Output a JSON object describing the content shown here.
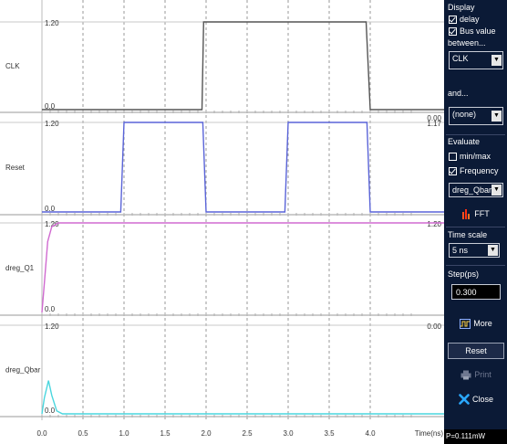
{
  "waveform": {
    "tick_color": "#b0b0b0",
    "lanes": [
      {
        "name": "CLK",
        "hi_label": "1.20",
        "lo_label": "0.0",
        "right_value": "0.00",
        "color": "#555555",
        "points": [
          [
            0,
            0
          ],
          [
            1.95,
            0
          ],
          [
            1.97,
            1.2
          ],
          [
            3.95,
            1.2
          ],
          [
            4.0,
            0
          ],
          [
            5.0,
            0
          ]
        ]
      },
      {
        "name": "Reset",
        "hi_label": "1.20",
        "lo_label": "0.0",
        "right_value": "1.17",
        "color": "#5a64d8",
        "points": [
          [
            0,
            0
          ],
          [
            0.96,
            0
          ],
          [
            1.0,
            1.2
          ],
          [
            1.96,
            1.2
          ],
          [
            2.0,
            0
          ],
          [
            2.96,
            0
          ],
          [
            3.0,
            1.2
          ],
          [
            3.96,
            1.2
          ],
          [
            4.0,
            0
          ],
          [
            5.0,
            0
          ]
        ]
      },
      {
        "name": "dreg_Q1",
        "hi_label": "1.20",
        "lo_label": "0.0",
        "right_value": "1.20",
        "color": "#d06ad0",
        "points": [
          [
            0,
            0
          ],
          [
            0.03,
            0.4
          ],
          [
            0.07,
            0.95
          ],
          [
            0.12,
            1.15
          ],
          [
            0.2,
            1.2
          ],
          [
            5.0,
            1.2
          ]
        ]
      },
      {
        "name": "dreg_Qbar",
        "hi_label": "1.20",
        "lo_label": "0.0",
        "right_value": "0.00",
        "color": "#4ad6de",
        "points": [
          [
            0,
            0
          ],
          [
            0.03,
            0.22
          ],
          [
            0.08,
            0.45
          ],
          [
            0.12,
            0.25
          ],
          [
            0.18,
            0.04
          ],
          [
            0.25,
            0
          ],
          [
            5.0,
            0
          ]
        ]
      }
    ],
    "x_ticks": [
      "0.0",
      "0.5",
      "1.0",
      "1.5",
      "2.0",
      "2.5",
      "3.0",
      "3.5",
      "4.0"
    ],
    "x_label": "Time(ns)"
  },
  "panel": {
    "display_label": "Display",
    "delay_label": "delay",
    "delay_checked": true,
    "bus_label": "Bus value",
    "bus_checked": true,
    "between_label": "between...",
    "from_signal": "CLK",
    "and_label": "and...",
    "to_signal": "(none)",
    "evaluate_label": "Evaluate",
    "minmax_label": "min/max",
    "minmax_checked": false,
    "frequency_label": "Frequency",
    "frequency_checked": true,
    "eval_signal": "dreg_Qbar",
    "fft_label": "FFT",
    "timescale_label": "Time scale",
    "timescale_value": "5 ns",
    "step_label": "Step(ps)",
    "step_value": "0.300",
    "more_label": "More",
    "reset_label": "Reset",
    "print_label": "Print",
    "close_label": "Close",
    "status_text": "P=0.111mW"
  }
}
